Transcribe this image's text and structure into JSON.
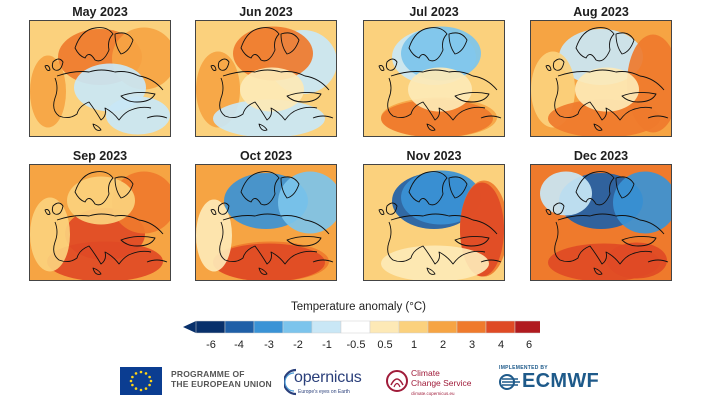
{
  "colors": {
    "neg6": "#08306b",
    "neg4": "#1f5fa7",
    "neg3": "#3a93d6",
    "neg2": "#7cc4ec",
    "neg1": "#c9e7f6",
    "neutral": "#ffffff",
    "pos05": "#fde9b6",
    "pos1": "#fbd17d",
    "pos2": "#f6a443",
    "pos3": "#ef7a2c",
    "pos4": "#df4a25",
    "pos6": "#b01a1f",
    "coast": "#111111",
    "brand_blue": "#2a3f7a",
    "brand_red": "#a01c3a",
    "ecmwf_blue": "#1e5a8a"
  },
  "panels": [
    {
      "title": "May 2023",
      "base": "pos1",
      "blobs": [
        [
          "pos3",
          "n"
        ],
        [
          "pos2",
          "ne"
        ],
        [
          "neg1",
          "c"
        ],
        [
          "neg1",
          "se"
        ],
        [
          "pos2",
          "w"
        ]
      ]
    },
    {
      "title": "Jun 2023",
      "base": "pos1",
      "blobs": [
        [
          "neg1",
          "ne"
        ],
        [
          "pos3",
          "n"
        ],
        [
          "pos2",
          "w"
        ],
        [
          "neg1",
          "s"
        ],
        [
          "pos05",
          "c"
        ]
      ]
    },
    {
      "title": "Jul 2023",
      "base": "pos1",
      "blobs": [
        [
          "neg1",
          "n"
        ],
        [
          "neg2",
          "n"
        ],
        [
          "pos2",
          "s"
        ],
        [
          "pos3",
          "s"
        ],
        [
          "pos05",
          "c"
        ]
      ]
    },
    {
      "title": "Aug 2023",
      "base": "pos2",
      "blobs": [
        [
          "neg1",
          "n"
        ],
        [
          "pos3",
          "e"
        ],
        [
          "pos1",
          "w"
        ],
        [
          "pos3",
          "s"
        ],
        [
          "pos05",
          "c"
        ]
      ]
    },
    {
      "title": "Sep 2023",
      "base": "pos2",
      "blobs": [
        [
          "pos4",
          "c"
        ],
        [
          "pos3",
          "ne"
        ],
        [
          "pos4",
          "s"
        ],
        [
          "pos1",
          "w"
        ],
        [
          "pos1",
          "n"
        ]
      ]
    },
    {
      "title": "Oct 2023",
      "base": "pos2",
      "blobs": [
        [
          "neg3",
          "n"
        ],
        [
          "neg2",
          "ne"
        ],
        [
          "pos3",
          "s"
        ],
        [
          "pos4",
          "s"
        ],
        [
          "pos05",
          "w"
        ]
      ]
    },
    {
      "title": "Nov 2023",
      "base": "pos1",
      "blobs": [
        [
          "neg4",
          "n"
        ],
        [
          "neg3",
          "n"
        ],
        [
          "pos3",
          "e"
        ],
        [
          "pos4",
          "e"
        ],
        [
          "pos05",
          "s"
        ]
      ]
    },
    {
      "title": "Dec 2023",
      "base": "pos3",
      "blobs": [
        [
          "neg4",
          "n"
        ],
        [
          "neg3",
          "ne"
        ],
        [
          "neg1",
          "nw"
        ],
        [
          "pos4",
          "s"
        ],
        [
          "pos4",
          "se"
        ]
      ]
    }
  ],
  "legend": {
    "title": "Temperature anomaly (°C)",
    "bins": [
      "neg6",
      "neg4",
      "neg3",
      "neg2",
      "neg1",
      "neutral",
      "pos05",
      "pos1",
      "pos2",
      "pos3",
      "pos4",
      "pos6"
    ],
    "ticks": [
      "-6",
      "-4",
      "-3",
      "-2",
      "-1",
      "-0.5",
      "0.5",
      "1",
      "2",
      "3",
      "4",
      "6"
    ]
  },
  "footer": {
    "eu_line1": "PROGRAMME OF",
    "eu_line2": "THE EUROPEAN UNION",
    "copernicus": "opernicus",
    "copernicus_tag": "Europe's eyes on Earth",
    "c3s_line1": "Climate",
    "c3s_line2": "Change Service",
    "c3s_tag": "climate.copernicus.eu",
    "implemented_by": "IMPLEMENTED BY",
    "ecmwf": "ECMWF"
  }
}
